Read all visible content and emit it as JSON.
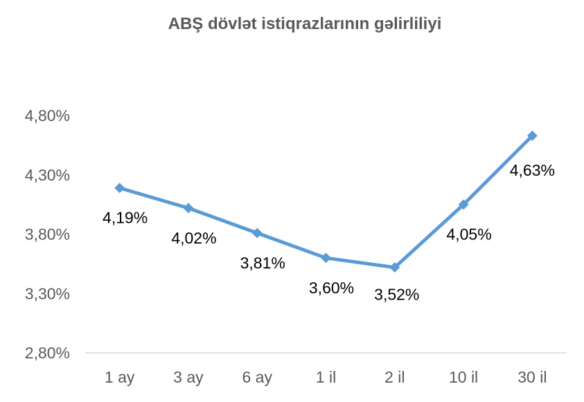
{
  "chart_data": {
    "type": "line",
    "title": "ABŞ dövlət istiqrazlarının gəlirliliyi",
    "xlabel": "",
    "ylabel": "",
    "categories": [
      "1 ay",
      "3 ay",
      "6 ay",
      "1 il",
      "2 il",
      "10 il",
      "30 il"
    ],
    "series": [
      {
        "values": [
          4.19,
          4.02,
          3.81,
          3.6,
          3.52,
          4.05,
          4.63
        ],
        "labels": [
          "4,19%",
          "4,02%",
          "3,81%",
          "3,60%",
          "3,52%",
          "4,05%",
          "4,63%"
        ],
        "color": "#5B9BD5",
        "marker": "diamond"
      }
    ],
    "ylim": [
      2.8,
      4.8
    ],
    "yticks": [
      2.8,
      3.3,
      3.8,
      4.3,
      4.8
    ],
    "ytick_labels": [
      "2,80%",
      "3,30%",
      "3,80%",
      "4,30%",
      "4,80%"
    ],
    "grid": false,
    "legend": "none"
  }
}
